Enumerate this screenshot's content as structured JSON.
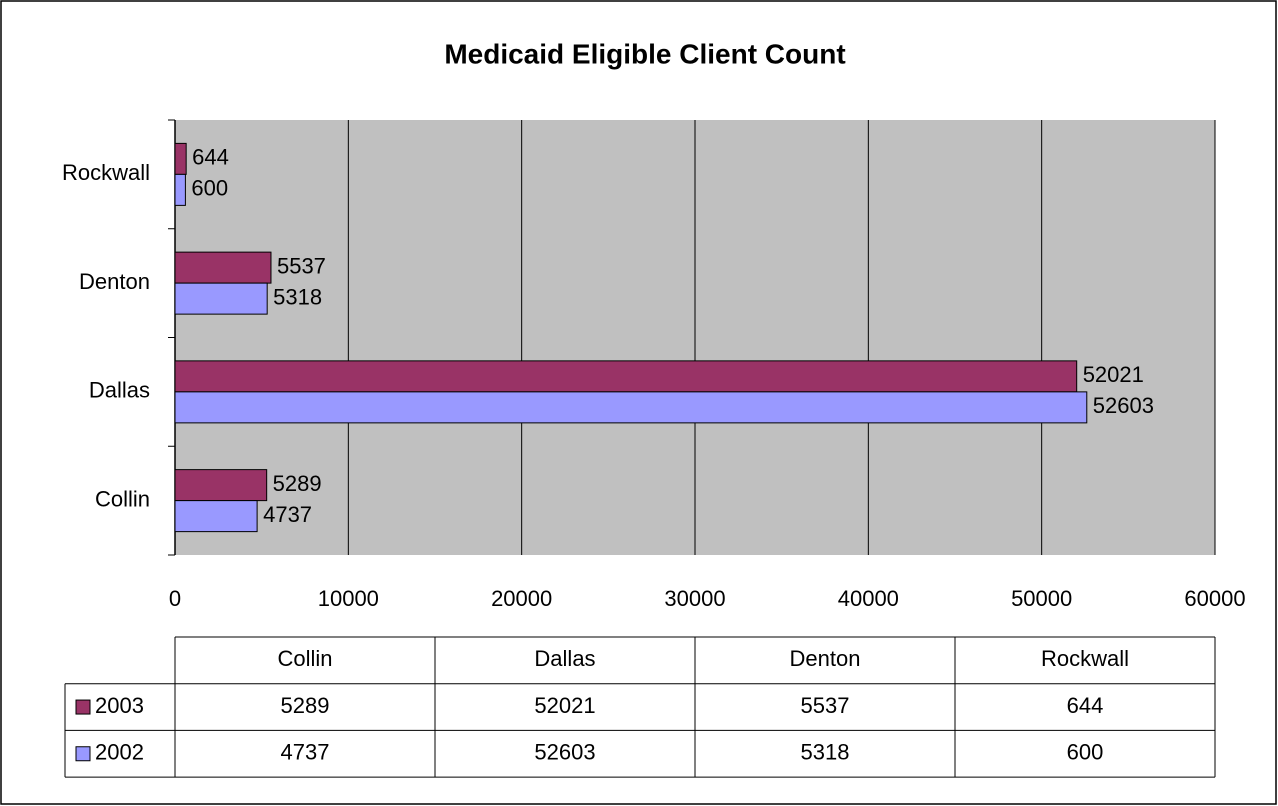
{
  "chart_data": {
    "type": "bar",
    "orientation": "horizontal",
    "title": "Medicaid Eligible Client Count",
    "categories": [
      "Collin",
      "Dallas",
      "Denton",
      "Rockwall"
    ],
    "series": [
      {
        "name": "2003",
        "color": "#993366",
        "values": [
          5289,
          52021,
          5537,
          644
        ]
      },
      {
        "name": "2002",
        "color": "#9999ff",
        "values": [
          4737,
          52603,
          5318,
          600
        ]
      }
    ],
    "xlim": [
      0,
      60000
    ],
    "xticks": [
      0,
      10000,
      20000,
      30000,
      40000,
      50000,
      60000
    ],
    "grid": true,
    "plot_background": "#c0c0c0",
    "data_table": true
  }
}
